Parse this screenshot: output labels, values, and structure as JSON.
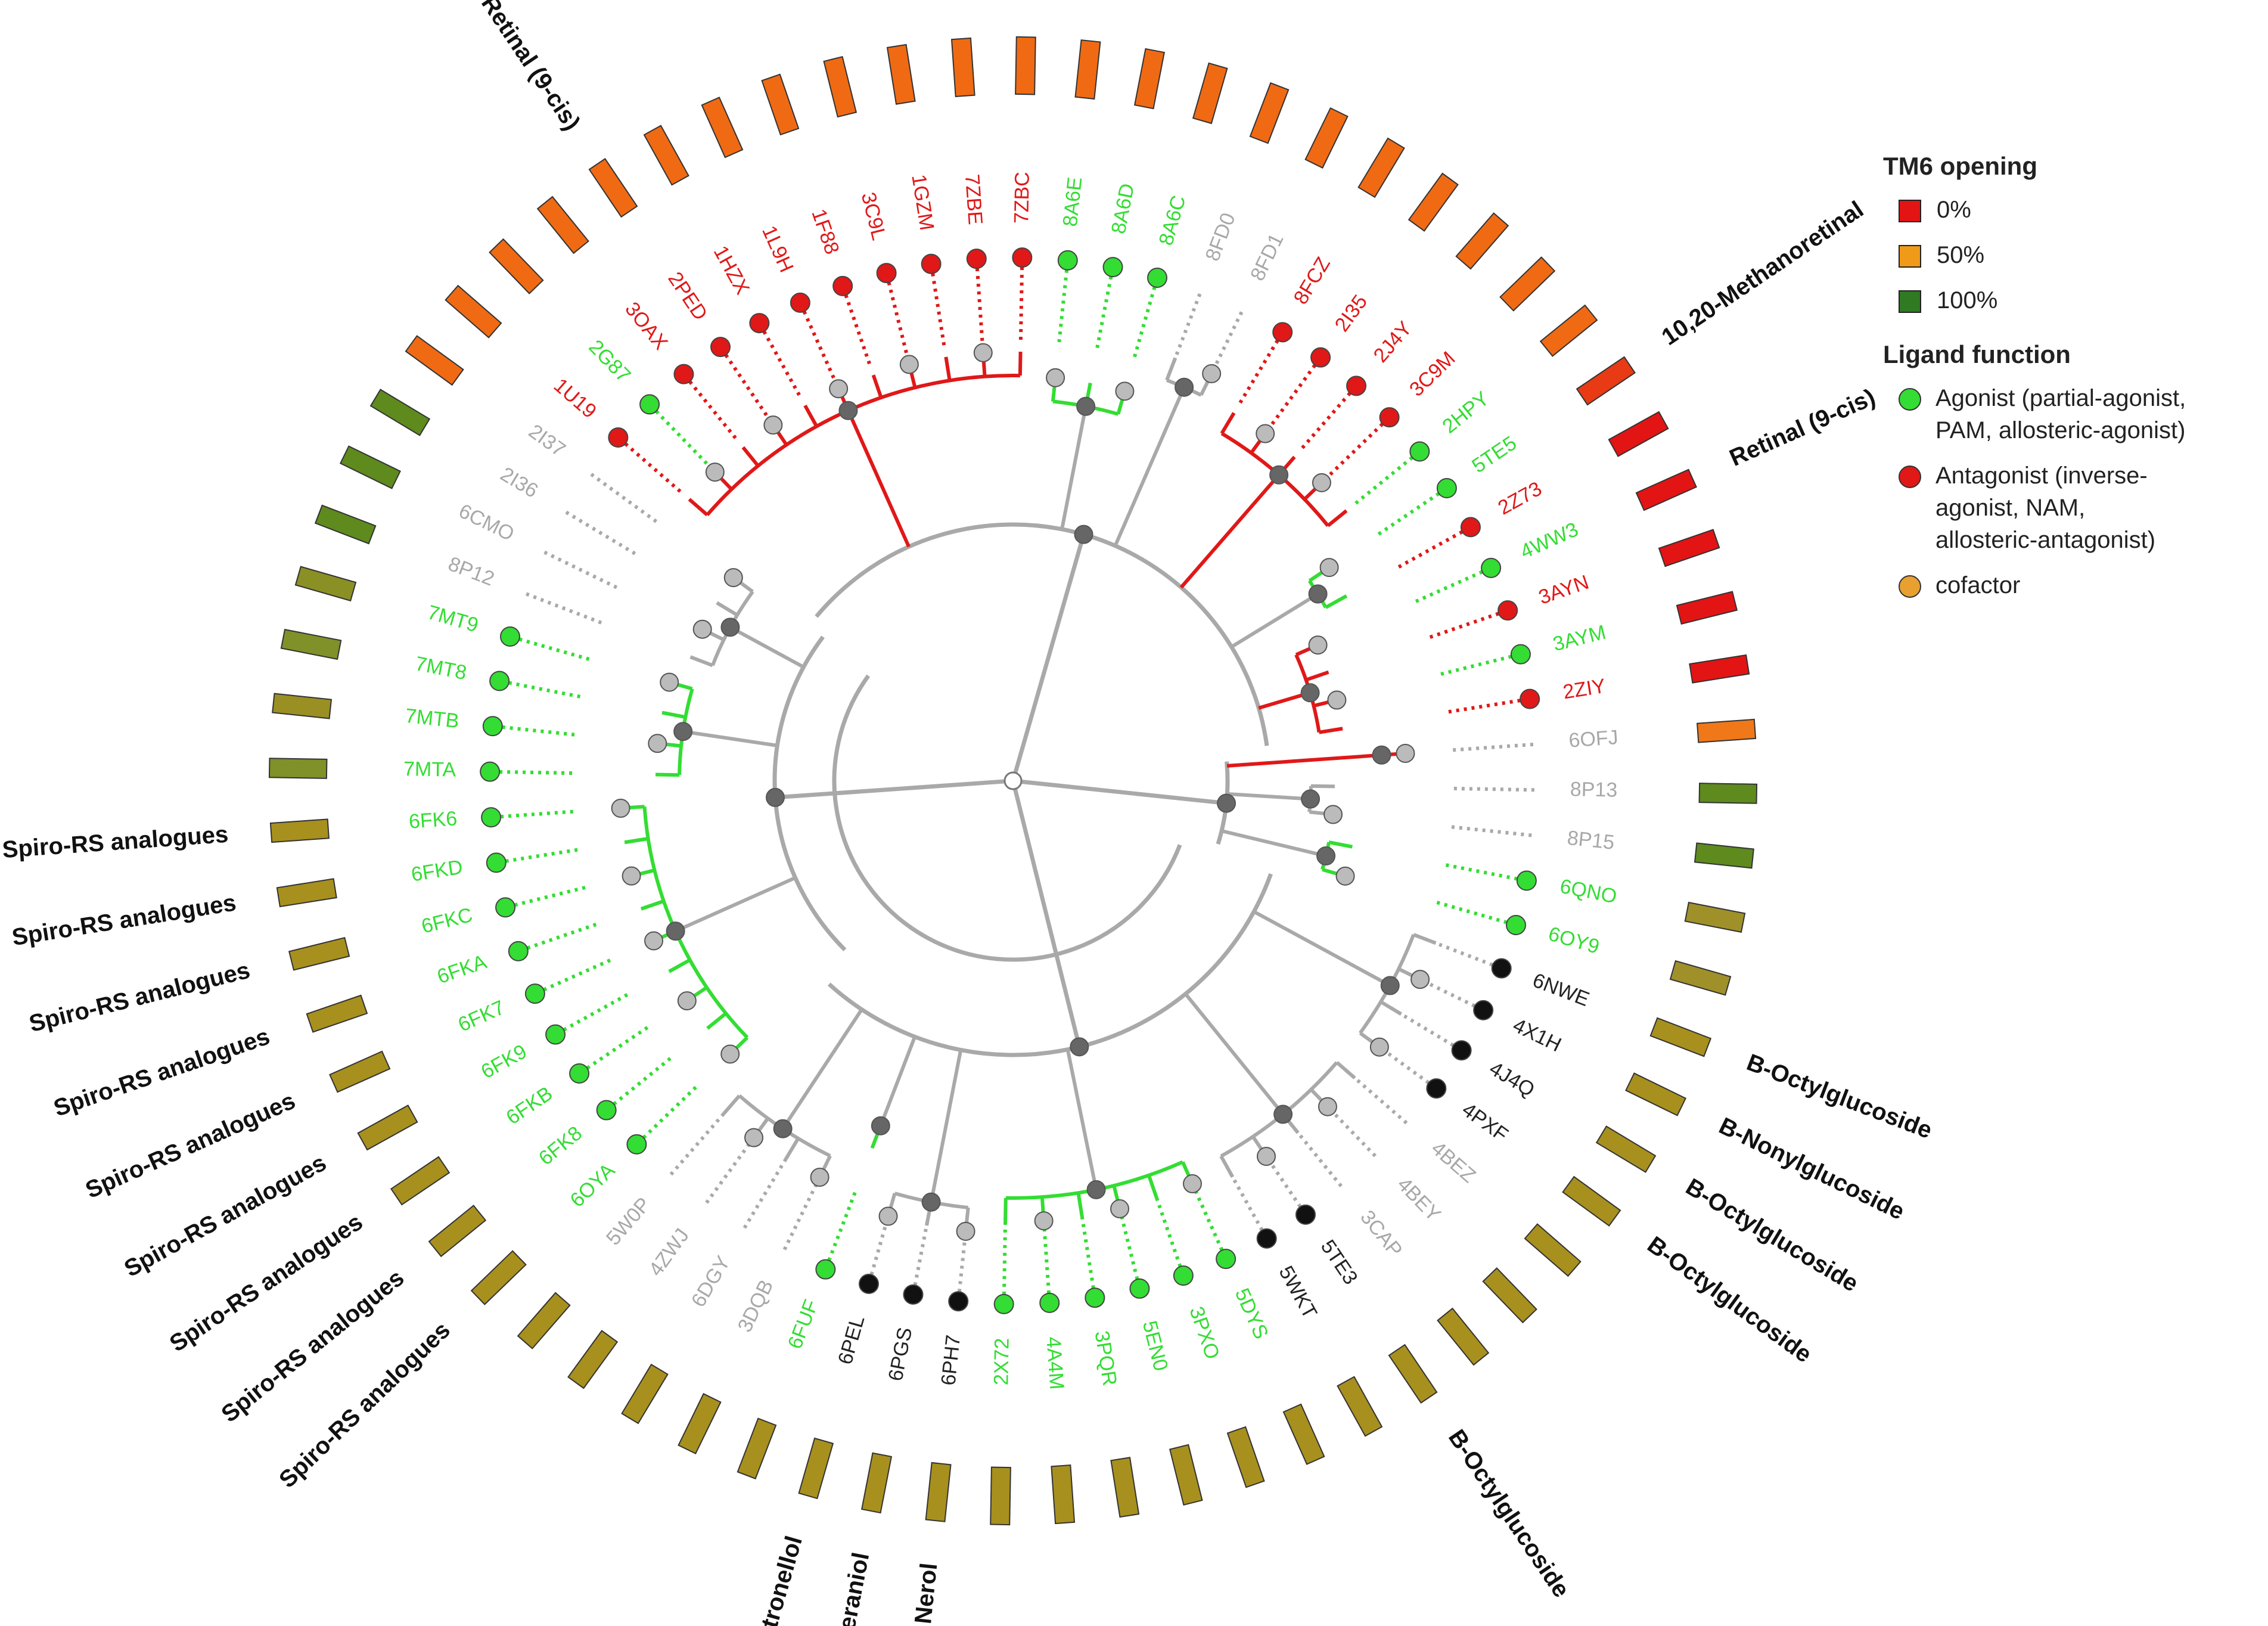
{
  "colors": {
    "agonist": "#33dd33",
    "antagonist": "#e01818",
    "cofactor": "#e8a030",
    "none": "#111111",
    "label_none": "#a8a8a8",
    "label_black": "#222222",
    "tm6_0": "#e31414",
    "tm6_50": "#f09a1a",
    "tm6_100": "#2f7a22",
    "branch_grey": "#a9a9a9",
    "branch_green": "#33dd33",
    "branch_red": "#e01818",
    "node_dark": "#666666",
    "node_light": "#bbbbbb"
  },
  "legend": {
    "tm6_title": "TM6 opening",
    "tm6_items": [
      {
        "label": "0%",
        "color": "#e31414"
      },
      {
        "label": "50%",
        "color": "#f09a1a"
      },
      {
        "label": "100%",
        "color": "#2f7a22"
      }
    ],
    "ligand_title": "Ligand function",
    "ligand_items": [
      {
        "label": "Agonist (partial-agonist,\nPAM, allosteric-agonist)",
        "color": "#33dd33"
      },
      {
        "label": "Antagonist (inverse-\nagonist,  NAM,\nallosteric-antagonist)",
        "color": "#e01818"
      },
      {
        "label": "cofactor",
        "color": "#e8a030"
      }
    ]
  },
  "tree": {
    "leaves": [
      {
        "id": "6OFJ",
        "func": "none",
        "bar": "#f07818",
        "ann": ""
      },
      {
        "id": "8P13",
        "func": "none",
        "bar": "#5e8a1e",
        "ann": ""
      },
      {
        "id": "8P15",
        "func": "none",
        "bar": "#5e8a1e",
        "ann": ""
      },
      {
        "id": "6QNO",
        "func": "agonist",
        "bar": "#a0902a",
        "ann": ""
      },
      {
        "id": "6OY9",
        "func": "agonist",
        "bar": "#a0902a",
        "ann": ""
      },
      {
        "id": "6NWE",
        "func": "ligand",
        "bar": "#a8901e",
        "ann": "B-Octylglucoside"
      },
      {
        "id": "4X1H",
        "func": "ligand",
        "bar": "#a8901e",
        "ann": "B-Nonylglucoside"
      },
      {
        "id": "4J4Q",
        "func": "ligand",
        "bar": "#a8901e",
        "ann": "B-Octylglucoside"
      },
      {
        "id": "4PXF",
        "func": "ligand",
        "bar": "#a8901e",
        "ann": "B-Octylglucoside"
      },
      {
        "id": "4BEZ",
        "func": "none",
        "bar": "#a8901e",
        "ann": ""
      },
      {
        "id": "4BEY",
        "func": "none",
        "bar": "#a8901e",
        "ann": ""
      },
      {
        "id": "3CAP",
        "func": "none",
        "bar": "#a8901e",
        "ann": ""
      },
      {
        "id": "5TE3",
        "func": "ligand",
        "bar": "#a8901e",
        "ann": "B-Octylglucoside"
      },
      {
        "id": "5WKT",
        "func": "ligand",
        "bar": "#a8901e",
        "ann": ""
      },
      {
        "id": "5DYS",
        "func": "agonist",
        "bar": "#a8901e",
        "ann": ""
      },
      {
        "id": "3PXO",
        "func": "agonist",
        "bar": "#a8901e",
        "ann": ""
      },
      {
        "id": "5EN0",
        "func": "agonist",
        "bar": "#a8901e",
        "ann": ""
      },
      {
        "id": "3PQR",
        "func": "agonist",
        "bar": "#a8901e",
        "ann": ""
      },
      {
        "id": "4A4M",
        "func": "agonist",
        "bar": "#a8901e",
        "ann": ""
      },
      {
        "id": "2X72",
        "func": "agonist",
        "bar": "#a8901e",
        "ann": ""
      },
      {
        "id": "6PH7",
        "func": "ligand",
        "bar": "#a8901e",
        "ann": "Nerol"
      },
      {
        "id": "6PGS",
        "func": "ligand",
        "bar": "#a8901e",
        "ann": "Geraniol"
      },
      {
        "id": "6PEL",
        "func": "ligand",
        "bar": "#a8901e",
        "ann": "Citronellol"
      },
      {
        "id": "6FUF",
        "func": "agonist",
        "bar": "#a8901e",
        "ann": ""
      },
      {
        "id": "3DQB",
        "func": "none",
        "bar": "#a8901e",
        "ann": ""
      },
      {
        "id": "6DGY",
        "func": "none",
        "bar": "#a8901e",
        "ann": ""
      },
      {
        "id": "4ZWJ",
        "func": "none",
        "bar": "#a8901e",
        "ann": ""
      },
      {
        "id": "5W0P",
        "func": "none",
        "bar": "#a8901e",
        "ann": ""
      },
      {
        "id": "6OYA",
        "func": "agonist",
        "bar": "#a8901e",
        "ann": "Spiro-RS analogues"
      },
      {
        "id": "6FK8",
        "func": "agonist",
        "bar": "#a8901e",
        "ann": "Spiro-RS analogues"
      },
      {
        "id": "6FKB",
        "func": "agonist",
        "bar": "#a8901e",
        "ann": "Spiro-RS analogues"
      },
      {
        "id": "6FK9",
        "func": "agonist",
        "bar": "#a8901e",
        "ann": "Spiro-RS analogues"
      },
      {
        "id": "6FK7",
        "func": "agonist",
        "bar": "#a8901e",
        "ann": "Spiro-RS analogues"
      },
      {
        "id": "6FKA",
        "func": "agonist",
        "bar": "#a8901e",
        "ann": "Spiro-RS analogues"
      },
      {
        "id": "6FKC",
        "func": "agonist",
        "bar": "#a8901e",
        "ann": "Spiro-RS analogues"
      },
      {
        "id": "6FKD",
        "func": "agonist",
        "bar": "#a8901e",
        "ann": "Spiro-RS analogues"
      },
      {
        "id": "6FK6",
        "func": "agonist",
        "bar": "#a8901e",
        "ann": "Spiro-RS analogues"
      },
      {
        "id": "7MTA",
        "func": "agonist",
        "bar": "#7f9128",
        "ann": ""
      },
      {
        "id": "7MTB",
        "func": "agonist",
        "bar": "#9a8f22",
        "ann": ""
      },
      {
        "id": "7MT8",
        "func": "agonist",
        "bar": "#7f9128",
        "ann": ""
      },
      {
        "id": "7MT9",
        "func": "agonist",
        "bar": "#8a9024",
        "ann": ""
      },
      {
        "id": "8P12",
        "func": "none",
        "bar": "#5e8a1e",
        "ann": ""
      },
      {
        "id": "6CMO",
        "func": "none",
        "bar": "#5e8a1e",
        "ann": ""
      },
      {
        "id": "2I36",
        "func": "none",
        "bar": "#5e8a1e",
        "ann": ""
      },
      {
        "id": "2I37",
        "func": "none",
        "bar": "#f06a14",
        "ann": ""
      },
      {
        "id": "1U19",
        "func": "antagonist",
        "bar": "#f06a14",
        "ann": ""
      },
      {
        "id": "2G87",
        "func": "agonist",
        "bar": "#f06a14",
        "ann": ""
      },
      {
        "id": "3OAX",
        "func": "antagonist",
        "bar": "#f06a14",
        "ann": ""
      },
      {
        "id": "2PED",
        "func": "antagonist",
        "bar": "#f06a14",
        "ann": "Retinal (9-cis)"
      },
      {
        "id": "1HZX",
        "func": "antagonist",
        "bar": "#f06a14",
        "ann": ""
      },
      {
        "id": "1L9H",
        "func": "antagonist",
        "bar": "#f06a14",
        "ann": ""
      },
      {
        "id": "1F88",
        "func": "antagonist",
        "bar": "#f06a14",
        "ann": ""
      },
      {
        "id": "3C9L",
        "func": "antagonist",
        "bar": "#f06a14",
        "ann": ""
      },
      {
        "id": "1GZM",
        "func": "antagonist",
        "bar": "#f06a14",
        "ann": ""
      },
      {
        "id": "7ZBE",
        "func": "antagonist",
        "bar": "#f06a14",
        "ann": ""
      },
      {
        "id": "7ZBC",
        "func": "antagonist",
        "bar": "#f06a14",
        "ann": ""
      },
      {
        "id": "8A6E",
        "func": "agonist",
        "bar": "#f06a14",
        "ann": ""
      },
      {
        "id": "8A6D",
        "func": "agonist",
        "bar": "#f06a14",
        "ann": ""
      },
      {
        "id": "8A6C",
        "func": "agonist",
        "bar": "#f06a14",
        "ann": ""
      },
      {
        "id": "8FD0",
        "func": "none",
        "bar": "#f06a14",
        "ann": ""
      },
      {
        "id": "8FD1",
        "func": "none",
        "bar": "#f06a14",
        "ann": ""
      },
      {
        "id": "8FCZ",
        "func": "antagonist",
        "bar": "#f06a14",
        "ann": ""
      },
      {
        "id": "2I35",
        "func": "antagonist",
        "bar": "#f06a14",
        "ann": ""
      },
      {
        "id": "2J4Y",
        "func": "antagonist",
        "bar": "#f06a14",
        "ann": ""
      },
      {
        "id": "3C9M",
        "func": "antagonist",
        "bar": "#f06a14",
        "ann": ""
      },
      {
        "id": "2HPY",
        "func": "agonist",
        "bar": "#f06a14",
        "ann": ""
      },
      {
        "id": "5TE5",
        "func": "agonist",
        "bar": "#e83a14",
        "ann": "10,20-Methanoretinal"
      },
      {
        "id": "2Z73",
        "func": "antagonist",
        "bar": "#e31414",
        "ann": ""
      },
      {
        "id": "4WW3",
        "func": "agonist",
        "bar": "#e31414",
        "ann": "Retinal (9-cis)"
      },
      {
        "id": "3AYN",
        "func": "antagonist",
        "bar": "#e31414",
        "ann": ""
      },
      {
        "id": "3AYM",
        "func": "agonist",
        "bar": "#e31414",
        "ann": ""
      },
      {
        "id": "2ZIY",
        "func": "antagonist",
        "bar": "#e31414",
        "ann": ""
      }
    ]
  }
}
